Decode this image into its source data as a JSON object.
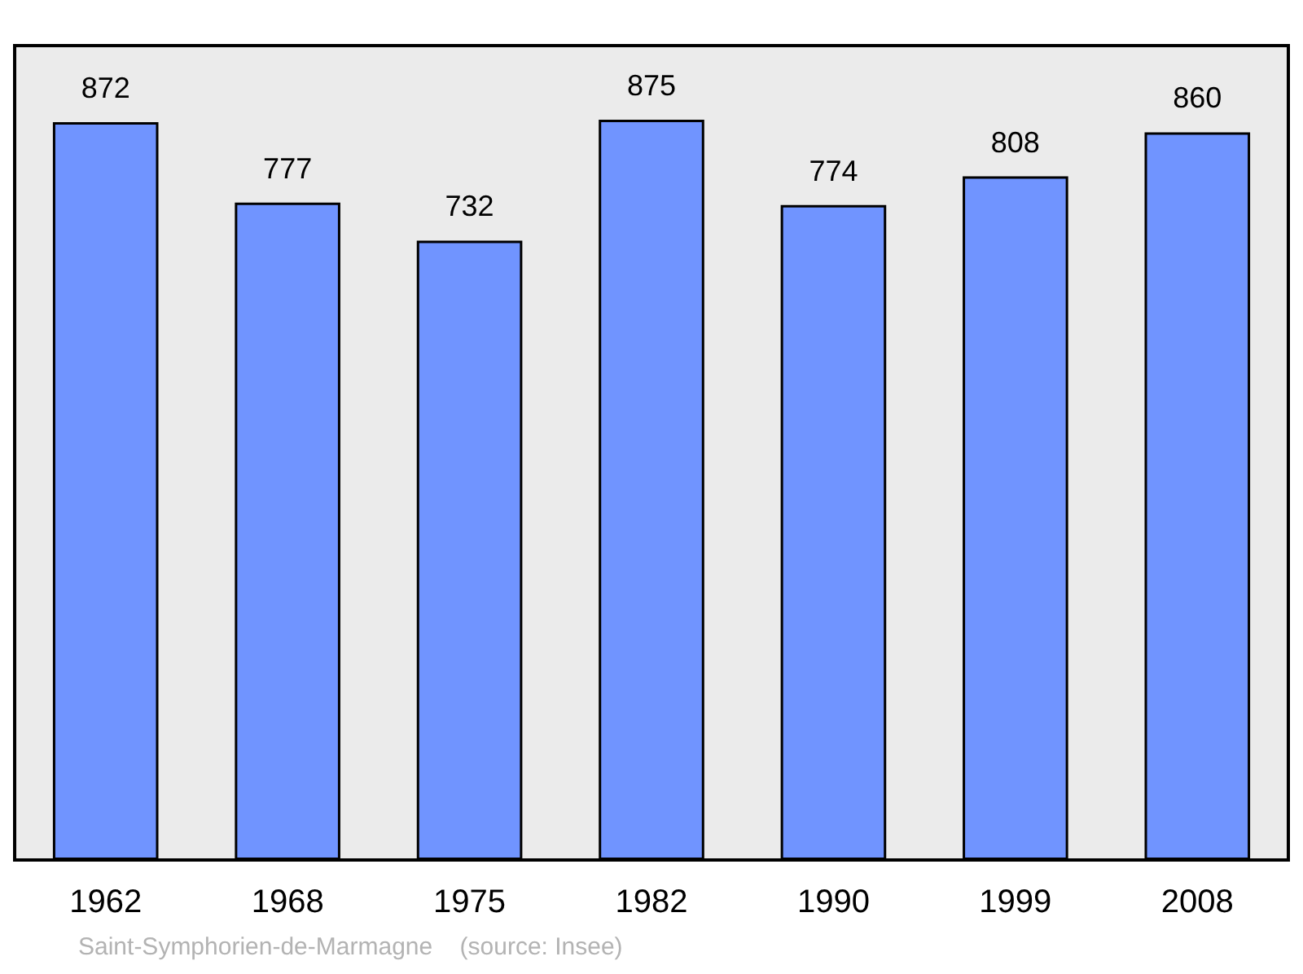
{
  "chart_data": {
    "type": "bar",
    "categories": [
      "1962",
      "1968",
      "1975",
      "1982",
      "1990",
      "1999",
      "2008"
    ],
    "values": [
      872,
      777,
      732,
      875,
      774,
      808,
      860
    ],
    "color": "#7094ff",
    "data_labels": true,
    "annotations": [
      "Saint-Symphorien-de-Marmagne    (source: Insee)"
    ]
  }
}
